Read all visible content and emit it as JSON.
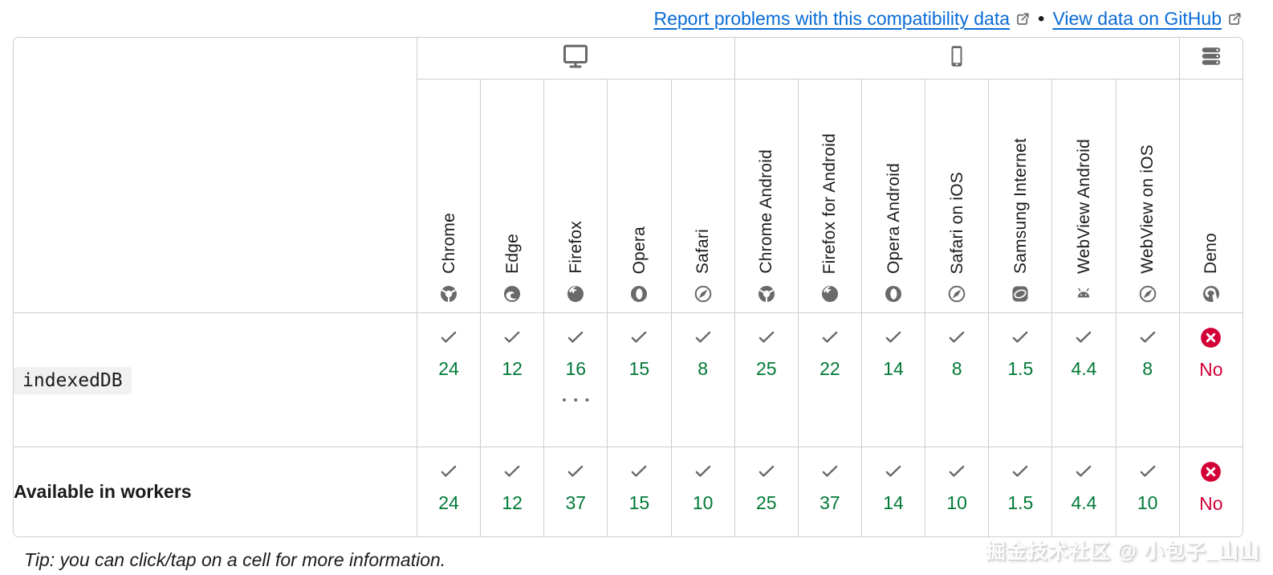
{
  "links": {
    "report_label": "Report problems with this compatibility data",
    "separator": "•",
    "github_label": "View data on GitHub"
  },
  "table": {
    "platform_groups": [
      {
        "id": "desktop",
        "icon": "desktop-icon",
        "span": 5
      },
      {
        "id": "mobile",
        "icon": "mobile-icon",
        "span": 7
      },
      {
        "id": "server",
        "icon": "server-icon",
        "span": 1
      }
    ],
    "browsers": [
      {
        "name": "Chrome",
        "icon": "chrome-icon"
      },
      {
        "name": "Edge",
        "icon": "edge-icon"
      },
      {
        "name": "Firefox",
        "icon": "firefox-icon"
      },
      {
        "name": "Opera",
        "icon": "opera-icon"
      },
      {
        "name": "Safari",
        "icon": "safari-icon"
      },
      {
        "name": "Chrome Android",
        "icon": "chrome-icon"
      },
      {
        "name": "Firefox for Android",
        "icon": "firefox-icon"
      },
      {
        "name": "Opera Android",
        "icon": "opera-icon"
      },
      {
        "name": "Safari on iOS",
        "icon": "safari-icon"
      },
      {
        "name": "Samsung Internet",
        "icon": "samsung-internet-icon"
      },
      {
        "name": "WebView Android",
        "icon": "android-icon"
      },
      {
        "name": "WebView on iOS",
        "icon": "safari-icon"
      },
      {
        "name": "Deno",
        "icon": "deno-icon"
      }
    ],
    "footnote_indicator": "•••",
    "rows": [
      {
        "feature": "indexedDB",
        "style": "code",
        "cells": [
          {
            "support": "yes",
            "version": "24"
          },
          {
            "support": "yes",
            "version": "12"
          },
          {
            "support": "yes",
            "version": "16",
            "has_footnote": true
          },
          {
            "support": "yes",
            "version": "15"
          },
          {
            "support": "yes",
            "version": "8"
          },
          {
            "support": "yes",
            "version": "25"
          },
          {
            "support": "yes",
            "version": "22"
          },
          {
            "support": "yes",
            "version": "14"
          },
          {
            "support": "yes",
            "version": "8"
          },
          {
            "support": "yes",
            "version": "1.5"
          },
          {
            "support": "yes",
            "version": "4.4"
          },
          {
            "support": "yes",
            "version": "8"
          },
          {
            "support": "no",
            "version": "No"
          }
        ]
      },
      {
        "feature": "Available in workers",
        "style": "plain",
        "cells": [
          {
            "support": "yes",
            "version": "24"
          },
          {
            "support": "yes",
            "version": "12"
          },
          {
            "support": "yes",
            "version": "37"
          },
          {
            "support": "yes",
            "version": "15"
          },
          {
            "support": "yes",
            "version": "10"
          },
          {
            "support": "yes",
            "version": "25"
          },
          {
            "support": "yes",
            "version": "37"
          },
          {
            "support": "yes",
            "version": "14"
          },
          {
            "support": "yes",
            "version": "10"
          },
          {
            "support": "yes",
            "version": "1.5"
          },
          {
            "support": "yes",
            "version": "4.4"
          },
          {
            "support": "yes",
            "version": "10"
          },
          {
            "support": "no",
            "version": "No"
          }
        ]
      }
    ]
  },
  "tip": "Tip: you can click/tap on a cell for more information.",
  "watermark": "掘金技术社区 @ 小包子_山山",
  "colors": {
    "link_blue": "#0a6cd6",
    "supported_green": "#007936",
    "unsupported_red": "#d30038",
    "icon_gray": "#696969",
    "border_gray": "#cdcdcd",
    "code_background": "#f2f1f1"
  }
}
